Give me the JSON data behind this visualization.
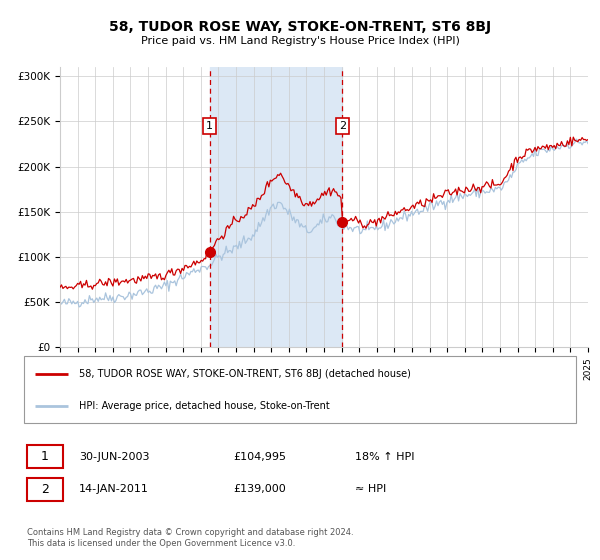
{
  "title": "58, TUDOR ROSE WAY, STOKE-ON-TRENT, ST6 8BJ",
  "subtitle": "Price paid vs. HM Land Registry's House Price Index (HPI)",
  "ylabel_ticks": [
    "£0",
    "£50K",
    "£100K",
    "£150K",
    "£200K",
    "£250K",
    "£300K"
  ],
  "ytick_values": [
    0,
    50000,
    100000,
    150000,
    200000,
    250000,
    300000
  ],
  "ylim": [
    0,
    310000
  ],
  "sale1_date": "30-JUN-2003",
  "sale1_price": 104995,
  "sale1_label": "1",
  "sale1_hpi_pct": "18% ↑ HPI",
  "sale2_date": "14-JAN-2011",
  "sale2_price": 139000,
  "sale2_label": "2",
  "sale2_hpi_pct": "≈ HPI",
  "legend_red": "58, TUDOR ROSE WAY, STOKE-ON-TRENT, ST6 8BJ (detached house)",
  "legend_blue": "HPI: Average price, detached house, Stoke-on-Trent",
  "footer": "Contains HM Land Registry data © Crown copyright and database right 2024.\nThis data is licensed under the Open Government Licence v3.0.",
  "red_color": "#cc0000",
  "blue_color": "#aac4dd",
  "highlight_bg": "#dce8f5",
  "grid_color": "#cccccc",
  "x_start_year": 1995,
  "x_end_year": 2025,
  "sale1_x": 2003.5,
  "sale2_x": 2011.04
}
